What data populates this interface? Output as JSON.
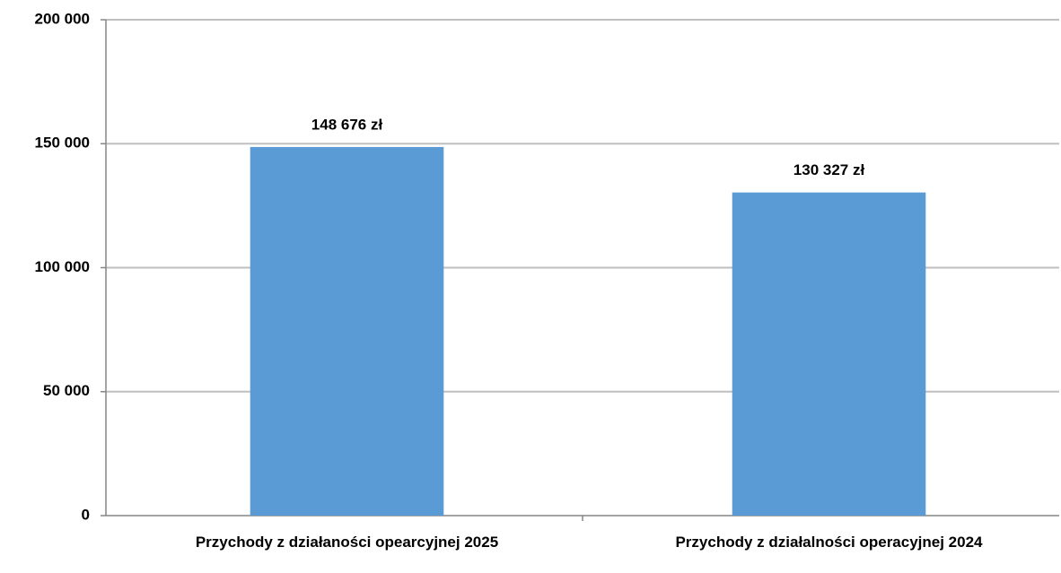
{
  "chart_data": {
    "type": "bar",
    "categories": [
      "Przychody z działaności opearcyjnej 2025",
      "Przychody z działalności operacyjnej 2024"
    ],
    "values": [
      148676,
      130327
    ],
    "value_labels": [
      "148 676 zł",
      "130 327 zł"
    ],
    "color": "#5b9bd5",
    "ylim": [
      0,
      200000
    ],
    "yticks": [
      0,
      {
        "value": 50000,
        "label": "50 000"
      },
      {
        "value": 100000,
        "label": "100 000"
      },
      {
        "value": 150000,
        "label": "150 000"
      },
      {
        "value": 200000,
        "label": "200 000"
      }
    ],
    "grid": true
  }
}
